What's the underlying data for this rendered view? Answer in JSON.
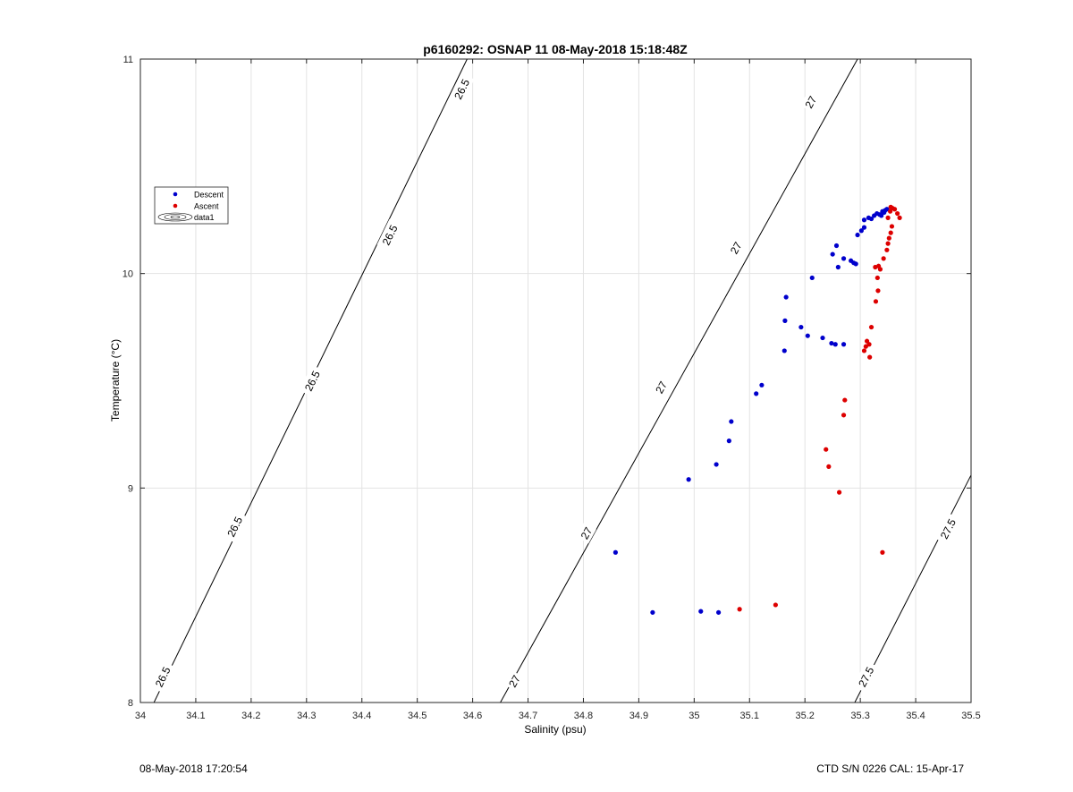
{
  "footer": {
    "timestamp": "08-May-2018 17:20:54",
    "ctd_info": "CTD S/N 0226  CAL: 15-Apr-17"
  },
  "chart_data": {
    "type": "scatter",
    "title": "p6160292: OSNAP 11 08-May-2018 15:18:48Z",
    "xlabel": "Salinity (psu)",
    "ylabel": "Temperature (°C)",
    "xlim": [
      34,
      35.5
    ],
    "ylim": [
      8,
      11
    ],
    "x_ticks": [
      34,
      34.1,
      34.2,
      34.3,
      34.4,
      34.5,
      34.6,
      34.7,
      34.8,
      34.9,
      35,
      35.1,
      35.2,
      35.3,
      35.4,
      35.5
    ],
    "x_tick_labels": [
      "34",
      "34.1",
      "34.2",
      "34.3",
      "34.4",
      "34.5",
      "34.6",
      "34.7",
      "34.8",
      "34.9",
      "35",
      "35.1",
      "35.2",
      "35.3",
      "35.4",
      "35.5"
    ],
    "y_ticks": [
      8,
      9,
      10,
      11
    ],
    "y_tick_labels": [
      "8",
      "9",
      "10",
      "11"
    ],
    "grid": true,
    "legend_position": "left",
    "legend": [
      "Descent",
      "Ascent",
      "data1"
    ],
    "colors": {
      "descent": "#0000cc",
      "ascent": "#dd0000",
      "contour": "#000000"
    },
    "series": [
      {
        "name": "Descent",
        "points": [
          [
            34.858,
            8.7
          ],
          [
            34.925,
            8.42
          ],
          [
            35.012,
            8.425
          ],
          [
            35.044,
            8.42
          ],
          [
            34.99,
            9.04
          ],
          [
            35.04,
            9.11
          ],
          [
            35.063,
            9.22
          ],
          [
            35.067,
            9.31
          ],
          [
            35.112,
            9.44
          ],
          [
            35.122,
            9.48
          ],
          [
            35.163,
            9.64
          ],
          [
            35.164,
            9.78
          ],
          [
            35.166,
            9.89
          ],
          [
            35.193,
            9.75
          ],
          [
            35.205,
            9.71
          ],
          [
            35.232,
            9.7
          ],
          [
            35.248,
            9.675
          ],
          [
            35.255,
            9.67
          ],
          [
            35.27,
            9.67
          ],
          [
            35.213,
            9.98
          ],
          [
            35.25,
            10.09
          ],
          [
            35.26,
            10.03
          ],
          [
            35.27,
            10.07
          ],
          [
            35.283,
            10.06
          ],
          [
            35.288,
            10.05
          ],
          [
            35.292,
            10.045
          ],
          [
            35.257,
            10.13
          ],
          [
            35.295,
            10.18
          ],
          [
            35.302,
            10.2
          ],
          [
            35.307,
            10.215
          ],
          [
            35.307,
            10.25
          ],
          [
            35.315,
            10.26
          ],
          [
            35.32,
            10.255
          ],
          [
            35.325,
            10.27
          ],
          [
            35.33,
            10.28
          ],
          [
            35.335,
            10.275
          ],
          [
            35.34,
            10.29
          ],
          [
            35.345,
            10.295
          ],
          [
            35.348,
            10.3
          ],
          [
            35.343,
            10.285
          ],
          [
            35.338,
            10.27
          ]
        ]
      },
      {
        "name": "Ascent",
        "points": [
          [
            35.082,
            8.435
          ],
          [
            35.147,
            8.455
          ],
          [
            35.34,
            8.7
          ],
          [
            35.262,
            8.98
          ],
          [
            35.243,
            9.1
          ],
          [
            35.238,
            9.18
          ],
          [
            35.27,
            9.34
          ],
          [
            35.272,
            9.41
          ],
          [
            35.307,
            9.64
          ],
          [
            35.31,
            9.66
          ],
          [
            35.312,
            9.685
          ],
          [
            35.317,
            9.61
          ],
          [
            35.316,
            9.67
          ],
          [
            35.32,
            9.75
          ],
          [
            35.328,
            9.87
          ],
          [
            35.332,
            9.92
          ],
          [
            35.331,
            9.98
          ],
          [
            35.327,
            10.03
          ],
          [
            35.333,
            10.035
          ],
          [
            35.336,
            10.02
          ],
          [
            35.342,
            10.07
          ],
          [
            35.348,
            10.11
          ],
          [
            35.35,
            10.14
          ],
          [
            35.352,
            10.165
          ],
          [
            35.355,
            10.19
          ],
          [
            35.357,
            10.22
          ],
          [
            35.35,
            10.26
          ],
          [
            35.354,
            10.29
          ],
          [
            35.358,
            10.305
          ],
          [
            35.362,
            10.3
          ],
          [
            35.367,
            10.28
          ],
          [
            35.371,
            10.26
          ],
          [
            35.355,
            10.31
          ]
        ]
      }
    ],
    "contours": [
      {
        "label": "26.5",
        "start": [
          34.0,
          7.87
        ],
        "end": [
          34.59,
          11.0
        ]
      },
      {
        "label": "27",
        "start": [
          34.65,
          8.0
        ],
        "end": [
          35.295,
          11.0
        ]
      },
      {
        "label": "27.5",
        "start": [
          35.29,
          8.0
        ],
        "end": [
          35.5,
          9.06
        ]
      }
    ],
    "contour_labels": [
      {
        "text": "26.5",
        "x": 34.04,
        "y": 8.12
      },
      {
        "text": "26.5",
        "x": 34.17,
        "y": 8.82
      },
      {
        "text": "26.5",
        "x": 34.31,
        "y": 9.5
      },
      {
        "text": "26.5",
        "x": 34.45,
        "y": 10.18
      },
      {
        "text": "26.5",
        "x": 34.58,
        "y": 10.86
      },
      {
        "text": "27",
        "x": 34.675,
        "y": 8.1
      },
      {
        "text": "27",
        "x": 34.805,
        "y": 8.79
      },
      {
        "text": "27",
        "x": 34.94,
        "y": 9.47
      },
      {
        "text": "27",
        "x": 35.075,
        "y": 10.12
      },
      {
        "text": "27",
        "x": 35.21,
        "y": 10.8
      },
      {
        "text": "27.5",
        "x": 35.31,
        "y": 8.12
      },
      {
        "text": "27.5",
        "x": 35.458,
        "y": 8.81
      }
    ]
  }
}
